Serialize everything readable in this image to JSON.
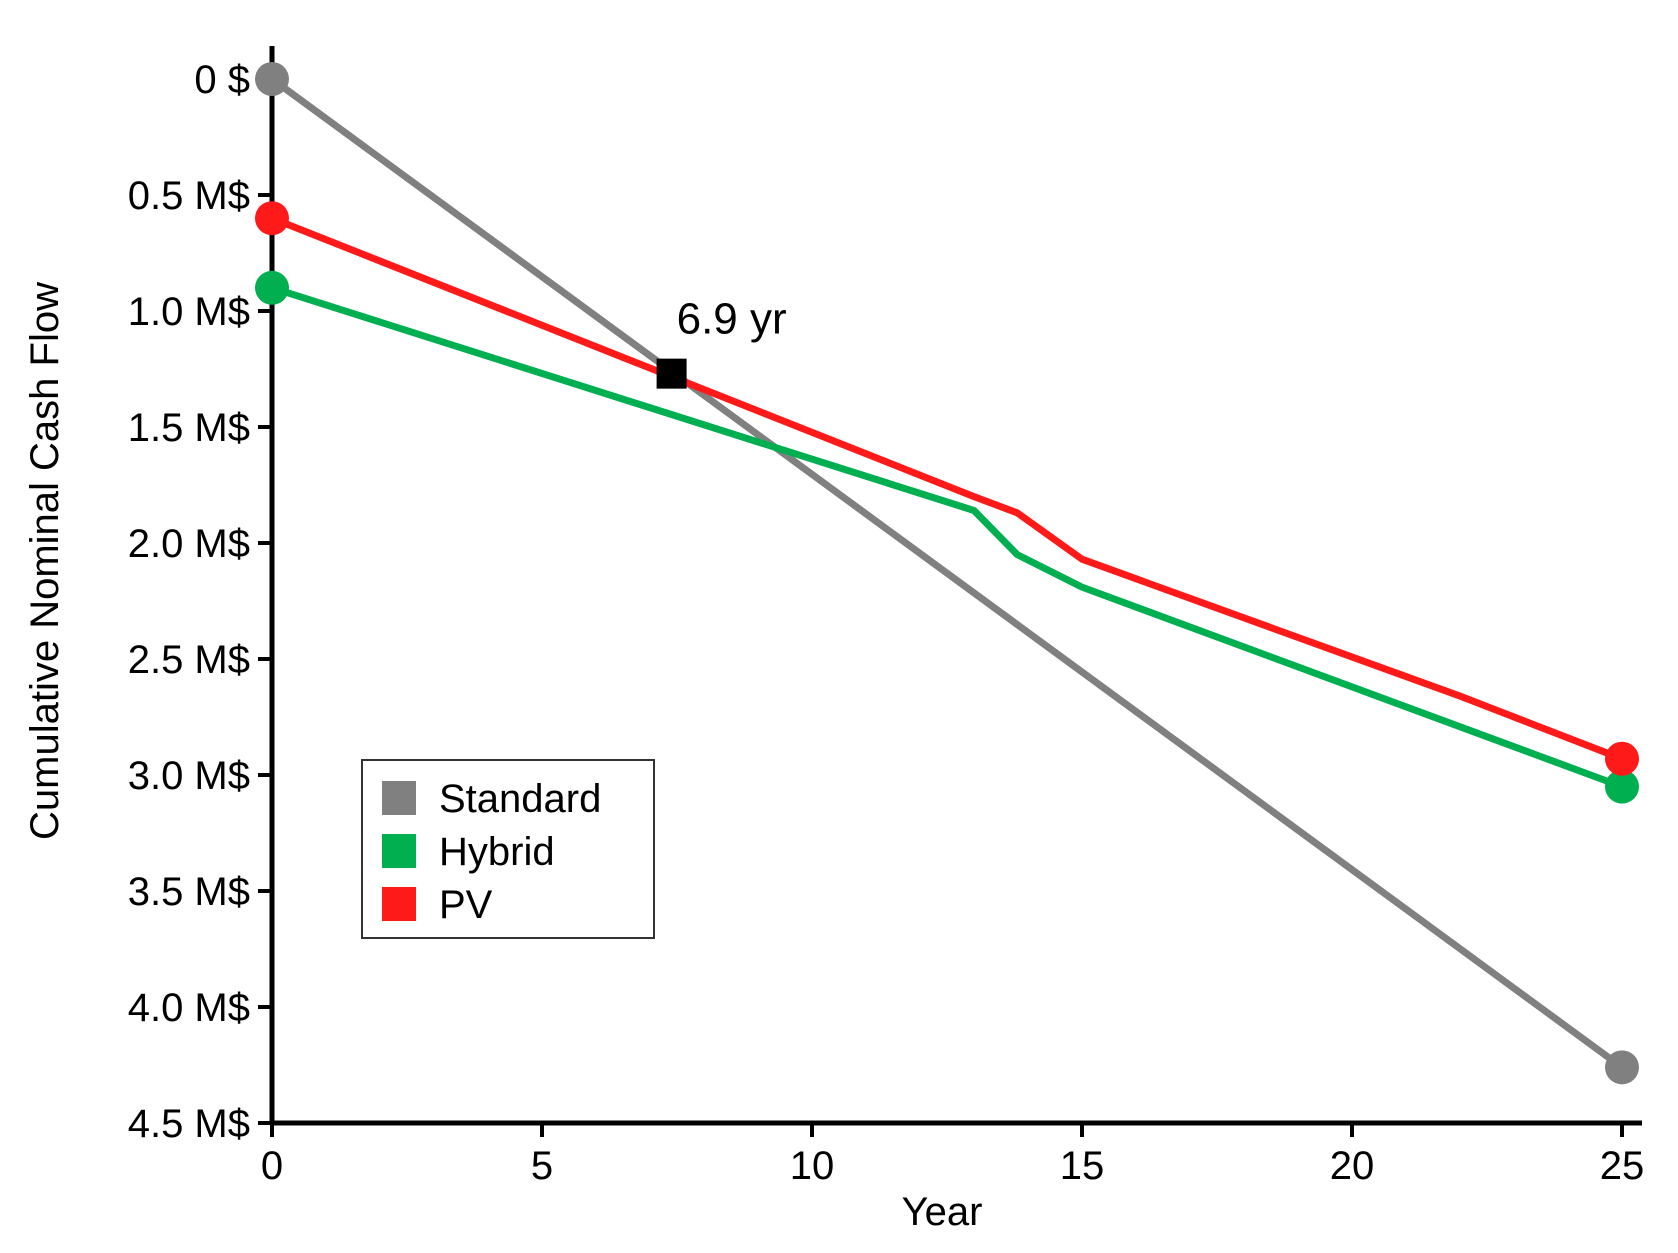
{
  "chart_data": {
    "type": "line",
    "title": "",
    "xlabel": "Year",
    "ylabel": "Cumulative Nominal Cash Flow",
    "xlim": [
      0,
      25
    ],
    "ylim": [
      0,
      4.5
    ],
    "y_inverted": true,
    "x_ticks": [
      {
        "value": 0,
        "label": "0"
      },
      {
        "value": 5,
        "label": "5"
      },
      {
        "value": 10,
        "label": "10"
      },
      {
        "value": 15,
        "label": "15"
      },
      {
        "value": 20,
        "label": "20"
      },
      {
        "value": 25,
        "label": "25"
      }
    ],
    "y_ticks": [
      {
        "value": 0,
        "label": "0 $"
      },
      {
        "value": 0.5,
        "label": "0.5 M$"
      },
      {
        "value": 1.0,
        "label": "1.0 M$"
      },
      {
        "value": 1.5,
        "label": "1.5 M$"
      },
      {
        "value": 2.0,
        "label": "2.0 M$"
      },
      {
        "value": 2.5,
        "label": "2.5 M$"
      },
      {
        "value": 3.0,
        "label": "3.0 M$"
      },
      {
        "value": 3.5,
        "label": "3.5 M$"
      },
      {
        "value": 4.0,
        "label": "4.0 M$"
      },
      {
        "value": 4.5,
        "label": "4.5 M$"
      }
    ],
    "grid": false,
    "legend_position": "lower-left",
    "series": [
      {
        "name": "Standard",
        "color": "#808080",
        "x": [
          0,
          25
        ],
        "y": [
          0.0,
          4.26
        ]
      },
      {
        "name": "Hybrid",
        "color": "#00b050",
        "x": [
          0,
          13,
          13.8,
          15,
          25
        ],
        "y": [
          0.9,
          1.86,
          2.05,
          2.19,
          3.05
        ]
      },
      {
        "name": "PV",
        "color": "#ff1a1a",
        "x": [
          0,
          13,
          13.8,
          15,
          22,
          25
        ],
        "y": [
          0.6,
          1.8,
          1.87,
          2.07,
          2.66,
          2.93
        ]
      }
    ],
    "annotations": [
      {
        "text": "6.9 yr",
        "x": 7.4,
        "y": 1.27,
        "marker": "square",
        "color": "#000000"
      }
    ]
  }
}
